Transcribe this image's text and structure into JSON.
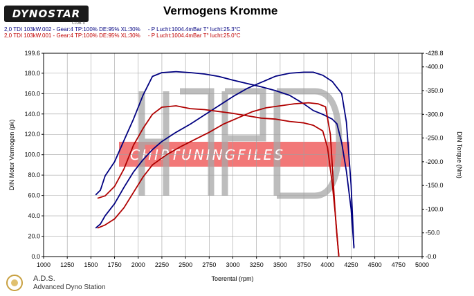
{
  "header": {
    "logo_text": "DYNOSTAR",
    "logo_sub": "CLUB-TI",
    "title": "Vermogens Kromme",
    "runs": [
      "2,0 TDI 103kW.002 - Gear:4 TP:100% DE:95% XL:30%     - P Lucht:1004.4mBar T° lucht:25.3°C",
      "2,0 TDI 103kW.001 - Gear:4 TP:100% DE:95% XL:30%     - P Lucht:1004.4mBar T° lucht:25.0°C"
    ]
  },
  "footer": {
    "name": "A.D.S.",
    "subtitle": "Advanced Dyno Station"
  },
  "watermark_text": "CHIPTUNINGFILES",
  "colors": {
    "run_blue": "#000080",
    "run_red": "#b00000",
    "grid": "#a0a0a0",
    "watermark_band": "#f06060"
  },
  "chart_data": {
    "type": "line",
    "xlabel": "Toerental (rpm)",
    "ylabel": "DIN Motor Vermogen (pk)",
    "y2label": "DIN Torque (Nm)",
    "xlim": [
      1000,
      5000
    ],
    "ylim": [
      0,
      199.6
    ],
    "y2lim": [
      0,
      428.8
    ],
    "x_ticks": [
      "1000",
      "1250",
      "1500",
      "1750",
      "2000",
      "2250",
      "2500",
      "2750",
      "3000",
      "3250",
      "3500",
      "3750",
      "4000",
      "4250",
      "4500",
      "4750",
      "5000"
    ],
    "y_ticks": [
      "0.0",
      "20.0",
      "40.0",
      "60.0",
      "80.0",
      "100.0",
      "120.0",
      "140.0",
      "160.0",
      "180.0",
      "199.6"
    ],
    "y2_ticks": [
      "-0.0",
      "-50.0",
      "-100.0",
      "-150.0",
      "-200.0",
      "-250.0",
      "-300.0",
      "-350.0",
      "-400.0",
      "-428.8"
    ],
    "grid": true,
    "series": [
      {
        "axis": "left",
        "color": "#000080",
        "x": [
          1550,
          1600,
          1650,
          1750,
          1850,
          1950,
          2050,
          2150,
          2250,
          2400,
          2550,
          2700,
          2850,
          3000,
          3150,
          3300,
          3450,
          3600,
          3750,
          3850,
          3950,
          4050,
          4150,
          4200,
          4250,
          4280
        ],
        "values": [
          28,
          32,
          40,
          52,
          68,
          83,
          95,
          105,
          113,
          122,
          130,
          139,
          148,
          157,
          165,
          171,
          177,
          180,
          181,
          181,
          178,
          172,
          160,
          132,
          70,
          8
        ]
      },
      {
        "axis": "right",
        "color": "#000080",
        "x": [
          1550,
          1600,
          1650,
          1750,
          1850,
          1950,
          2050,
          2150,
          2250,
          2400,
          2550,
          2700,
          2850,
          3000,
          3150,
          3300,
          3450,
          3600,
          3750,
          3850,
          3950,
          4050,
          4100,
          4150,
          4200,
          4250,
          4280
        ],
        "values": [
          130,
          140,
          170,
          200,
          245,
          290,
          340,
          380,
          388,
          390,
          388,
          385,
          380,
          372,
          365,
          358,
          350,
          340,
          322,
          308,
          300,
          290,
          280,
          240,
          180,
          100,
          20
        ]
      },
      {
        "axis": "left",
        "color": "#b00000",
        "x": [
          1570,
          1650,
          1750,
          1850,
          1950,
          2050,
          2150,
          2300,
          2450,
          2600,
          2750,
          2900,
          3050,
          3200,
          3350,
          3500,
          3650,
          3800,
          3900,
          3980,
          4030,
          4060,
          4080,
          4100,
          4120
        ],
        "values": [
          28,
          31,
          37,
          48,
          63,
          78,
          90,
          100,
          108,
          115,
          122,
          130,
          136,
          142,
          146,
          148,
          150,
          151,
          150,
          147,
          120,
          75,
          45,
          22,
          0
        ]
      },
      {
        "axis": "right",
        "color": "#b00000",
        "x": [
          1570,
          1650,
          1750,
          1850,
          1950,
          2050,
          2150,
          2250,
          2400,
          2550,
          2700,
          2850,
          3000,
          3150,
          3300,
          3450,
          3600,
          3750,
          3850,
          3950,
          4000,
          4050,
          4080,
          4100,
          4120
        ],
        "values": [
          123,
          128,
          148,
          185,
          235,
          270,
          300,
          315,
          318,
          312,
          310,
          306,
          302,
          297,
          292,
          290,
          285,
          282,
          277,
          265,
          230,
          155,
          95,
          45,
          0
        ]
      }
    ]
  }
}
